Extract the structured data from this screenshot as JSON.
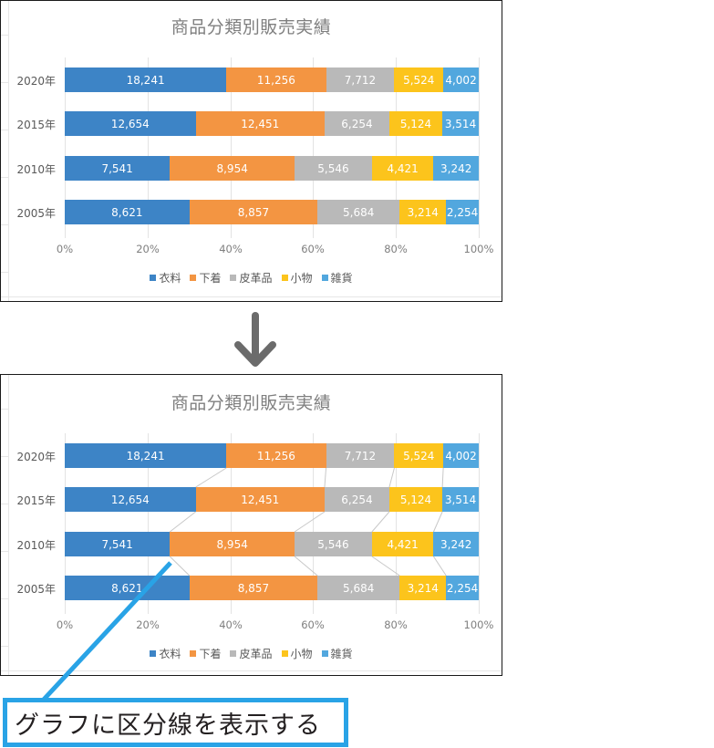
{
  "charts": [
    {
      "id": "before",
      "title": "商品分類別販売実績",
      "series_lines": false
    },
    {
      "id": "after",
      "title": "商品分類別販売実績",
      "series_lines": true
    }
  ],
  "arrow": {
    "icon": "down-arrow-icon"
  },
  "callout": {
    "text": "グラフに区分線を表示する",
    "border_color": "#29a3e6"
  },
  "colors": {
    "衣料": "#3d84c6",
    "下着": "#f39542",
    "皮革品": "#b9b9b9",
    "小物": "#fcc41c",
    "雑貨": "#52a7de"
  },
  "chart_data": [
    {
      "type": "bar",
      "orientation": "horizontal",
      "stacked": "percent",
      "title": "商品分類別販売実績",
      "categories": [
        "2020年",
        "2015年",
        "2010年",
        "2005年"
      ],
      "series": [
        {
          "name": "衣料",
          "color": "#3d84c6",
          "values": [
            18241,
            12654,
            7541,
            8621
          ],
          "labels": [
            "18,241",
            "12,654",
            "7,541",
            "8,621"
          ]
        },
        {
          "name": "下着",
          "color": "#f39542",
          "values": [
            11256,
            12451,
            8954,
            8857
          ],
          "labels": [
            "11,256",
            "12,451",
            "8,954",
            "8,857"
          ]
        },
        {
          "name": "皮革品",
          "color": "#b9b9b9",
          "values": [
            7712,
            6254,
            5546,
            5684
          ],
          "labels": [
            "7,712",
            "6,254",
            "5,546",
            "5,684"
          ]
        },
        {
          "name": "小物",
          "color": "#fcc41c",
          "values": [
            5524,
            5124,
            4421,
            3214
          ],
          "labels": [
            "5,524",
            "5,124",
            "4,421",
            "3,214"
          ]
        },
        {
          "name": "雑貨",
          "color": "#52a7de",
          "values": [
            4002,
            3514,
            3242,
            2254
          ],
          "labels": [
            "4,002",
            "3,514",
            "3,242",
            "2,254"
          ]
        }
      ],
      "xticks": [
        "0%",
        "20%",
        "40%",
        "60%",
        "80%",
        "100%"
      ],
      "xlim": [
        0,
        1
      ],
      "xlabel": "",
      "ylabel": "",
      "grid": true,
      "legend_position": "bottom",
      "series_lines": false
    },
    {
      "type": "bar",
      "orientation": "horizontal",
      "stacked": "percent",
      "title": "商品分類別販売実績",
      "categories": [
        "2020年",
        "2015年",
        "2010年",
        "2005年"
      ],
      "series": [
        {
          "name": "衣料",
          "color": "#3d84c6",
          "values": [
            18241,
            12654,
            7541,
            8621
          ],
          "labels": [
            "18,241",
            "12,654",
            "7,541",
            "8,621"
          ]
        },
        {
          "name": "下着",
          "color": "#f39542",
          "values": [
            11256,
            12451,
            8954,
            8857
          ],
          "labels": [
            "11,256",
            "12,451",
            "8,954",
            "8,857"
          ]
        },
        {
          "name": "皮革品",
          "color": "#b9b9b9",
          "values": [
            7712,
            6254,
            5546,
            5684
          ],
          "labels": [
            "7,712",
            "6,254",
            "5,546",
            "5,684"
          ]
        },
        {
          "name": "小物",
          "color": "#fcc41c",
          "values": [
            5524,
            5124,
            4421,
            3214
          ],
          "labels": [
            "5,524",
            "5,124",
            "4,421",
            "3,214"
          ]
        },
        {
          "name": "雑貨",
          "color": "#52a7de",
          "values": [
            4002,
            3514,
            3242,
            2254
          ],
          "labels": [
            "4,002",
            "3,514",
            "3,242",
            "2,254"
          ]
        }
      ],
      "xticks": [
        "0%",
        "20%",
        "40%",
        "60%",
        "80%",
        "100%"
      ],
      "xlim": [
        0,
        1
      ],
      "xlabel": "",
      "ylabel": "",
      "grid": true,
      "legend_position": "bottom",
      "series_lines": true
    }
  ]
}
